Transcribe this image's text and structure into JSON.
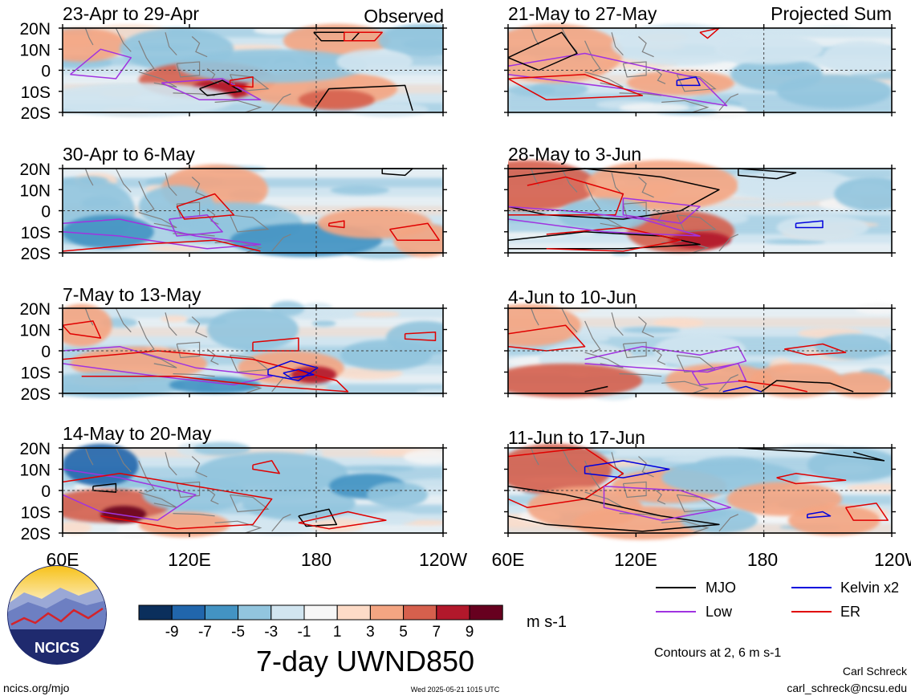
{
  "figure": {
    "variable_title": "7-day UWND850",
    "units": "m s-1",
    "observed_label": "Observed",
    "projected_label": "Projected Sum",
    "lat_labels": [
      "20N",
      "10N",
      "0",
      "10S",
      "20S"
    ],
    "lon_labels": [
      "60E",
      "120E",
      "180",
      "120W"
    ],
    "panels": [
      {
        "title": "23-Apr to 29-Apr"
      },
      {
        "title": "21-May to 27-May"
      },
      {
        "title": "30-Apr to 6-May"
      },
      {
        "title": "28-May to 3-Jun"
      },
      {
        "title": "7-May to 13-May"
      },
      {
        "title": "4-Jun to 10-Jun"
      },
      {
        "title": "14-May to 20-May"
      },
      {
        "title": "11-Jun to 17-Jun"
      }
    ]
  },
  "colorbar": {
    "labels": [
      "-9",
      "-7",
      "-5",
      "-3",
      "-1",
      "1",
      "3",
      "5",
      "7",
      "9"
    ],
    "colors": [
      "#0b2f5c",
      "#2166ac",
      "#4393c3",
      "#92c5de",
      "#d1e5f0",
      "#f7f7f7",
      "#fddbc7",
      "#f4a582",
      "#d6604d",
      "#b2182b",
      "#67001f"
    ]
  },
  "legend": {
    "items": [
      {
        "label": "MJO",
        "color": "#000000"
      },
      {
        "label": "Kelvin x2",
        "color": "#0000dd"
      },
      {
        "label": "Low",
        "color": "#a033e0"
      },
      {
        "label": "ER",
        "color": "#e00000"
      }
    ],
    "contours_note": "Contours at 2, 6 m s-1"
  },
  "logo": {
    "text": "NCICS"
  },
  "footer": {
    "url": "ncics.org/mjo",
    "timestamp": "Wed 2025-05-21 1015 UTC",
    "author": "Carl Schreck",
    "email": "carl_schreck@ncsu.edu"
  }
}
